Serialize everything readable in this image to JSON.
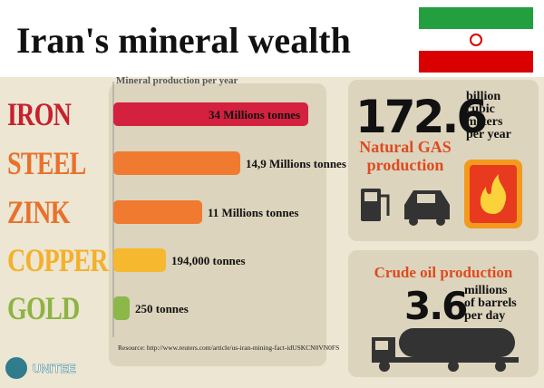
{
  "title": "Iran's mineral wealth",
  "production": {
    "heading": "Mineral production per year",
    "items": [
      {
        "name": "IRON",
        "label": "34 Millions tonnes"
      },
      {
        "name": "STEEL",
        "label": "14,9 Millions tonnes"
      },
      {
        "name": "ZINK",
        "label": "11 Millions tonnes"
      },
      {
        "name": "COPPER",
        "label": "194,000 tonnes"
      },
      {
        "name": "GOLD",
        "label": "250 tonnes"
      }
    ]
  },
  "resource": "Resource: http://www.reuters.com/article/us-iran-mining-fact-idUSKCN0VN0FS",
  "gas": {
    "value": 172.6,
    "unit_lines": [
      "billion",
      "cubic",
      "meters",
      "per year"
    ],
    "label_lines": [
      "Natural GAS",
      "production"
    ]
  },
  "oil": {
    "title": "Crude oil production",
    "value": 3.6,
    "unit_lines": [
      "millions",
      "of barrels",
      "per day"
    ]
  },
  "logo": "UNITEE"
}
